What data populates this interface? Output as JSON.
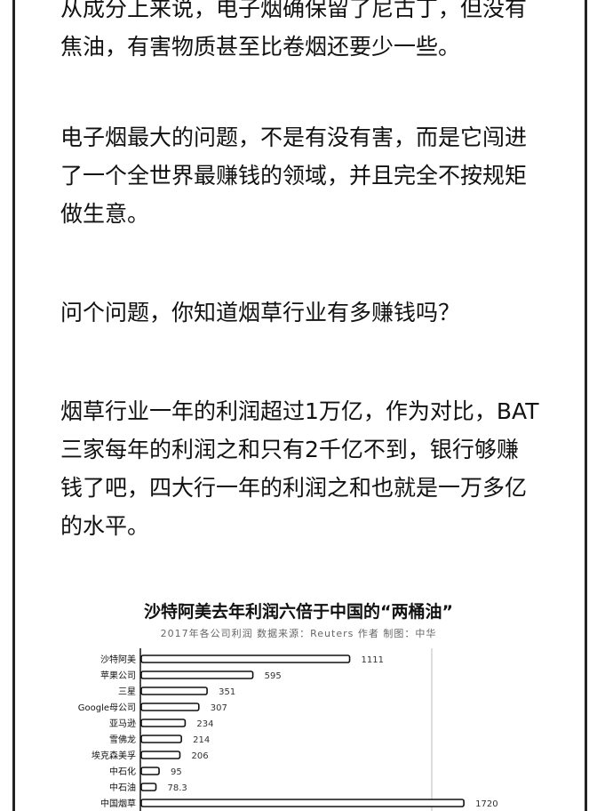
{
  "paragraphs": [
    {
      "lines": [
        "从成分上来说，电子烟确保留了尼古丁，但没有",
        "焦油，有害物质甚至比卷烟还要少一些。"
      ]
    },
    {
      "lines": [
        "电子烟最大的问题，不是有没有害，而是它闯进",
        "了一个全世界最赚钱的领域，并且完全不按规矩",
        "做生意。"
      ]
    },
    {
      "lines": [
        "问个问题，你知道烟草行业有多赚钱吗？"
      ]
    },
    {
      "lines": [
        "烟草行业一年的利润超过1万亿，作为对比，BAT",
        "三家每年的利润之和只有2千亿不到，银行够赚",
        "钱了吧，四大行一年的利润之和也就是一万多亿",
        "的水平。"
      ]
    }
  ],
  "chart": {
    "title": "沙特阿美去年利润六倍于中国的“两桶油”",
    "subtitle": "2017年各公司利润 数据来源：Reuters 作者 制图：中华"
  },
  "chart_data": {
    "type": "bar",
    "orientation": "horizontal",
    "title": "沙特阿美去年利润六倍于中国的“两桶油”",
    "categories": [
      "沙特阿美",
      "苹果公司",
      "三星",
      "Google母公司",
      "亚马逊",
      "雪佛龙",
      "埃克森美孚",
      "中石化",
      "中石油",
      "中国烟草"
    ],
    "values": [
      1111,
      595,
      351,
      307,
      234,
      214,
      206,
      95,
      78.3,
      1720
    ],
    "value_labels": [
      "1111",
      "595",
      "351",
      "307",
      "234",
      "214",
      "206",
      "95",
      "78.3",
      "1720"
    ],
    "xlim": [
      0,
      1800
    ],
    "colors": {
      "bar_fill": "#ffffff",
      "bar_stroke": "#111111",
      "axis": "#111111"
    }
  }
}
